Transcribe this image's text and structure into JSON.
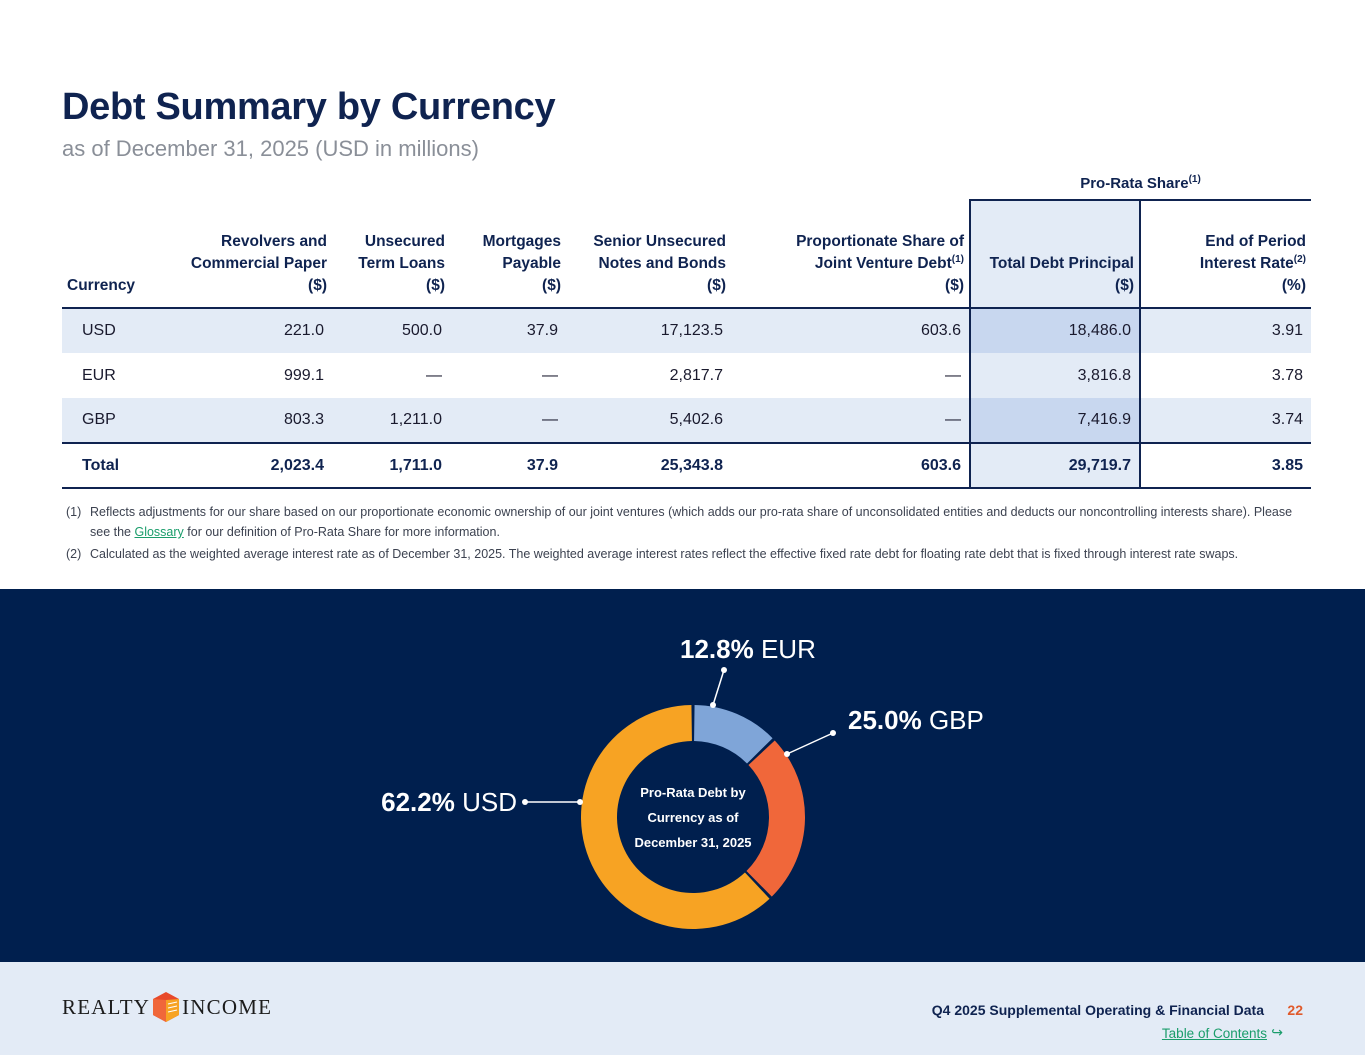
{
  "header": {
    "title": "Debt Summary by Currency",
    "subtitle": "as of December 31, 2025 (USD in millions)"
  },
  "table": {
    "prorata_group": "Pro-Rata Share",
    "prorata_group_note": "(1)",
    "columns": {
      "currency": "Currency",
      "revolvers_l1": "Revolvers and",
      "revolvers_l2": "Commercial Paper",
      "revolvers_unit": "($)",
      "term_l1": "Unsecured",
      "term_l2": "Term Loans",
      "term_unit": "($)",
      "mortgages_l1": "Mortgages",
      "mortgages_l2": "Payable",
      "mortgages_unit": "($)",
      "notes_l1": "Senior Unsecured",
      "notes_l2": "Notes and Bonds",
      "notes_unit": "($)",
      "jv_l1": "Proportionate Share of",
      "jv_l2": "Joint Venture Debt",
      "jv_note": "(1)",
      "jv_unit": "($)",
      "total_l1": "Total Debt Principal",
      "total_unit": "($)",
      "rate_l1": "End of Period",
      "rate_l2": "Interest Rate",
      "rate_note": "(2)",
      "rate_unit": "(%)"
    },
    "rows": [
      {
        "currency": "USD",
        "revolvers": "221.0",
        "term": "500.0",
        "mortgages": "37.9",
        "notes": "17,123.5",
        "jv": "603.6",
        "total": "18,486.0",
        "rate": "3.91"
      },
      {
        "currency": "EUR",
        "revolvers": "999.1",
        "term": "—",
        "mortgages": "—",
        "notes": "2,817.7",
        "jv": "—",
        "total": "3,816.8",
        "rate": "3.78"
      },
      {
        "currency": "GBP",
        "revolvers": "803.3",
        "term": "1,211.0",
        "mortgages": "—",
        "notes": "5,402.6",
        "jv": "—",
        "total": "7,416.9",
        "rate": "3.74"
      }
    ],
    "totals": {
      "currency": "Total",
      "revolvers": "2,023.4",
      "term": "1,711.0",
      "mortgages": "37.9",
      "notes": "25,343.8",
      "jv": "603.6",
      "total": "29,719.7",
      "rate": "3.85"
    }
  },
  "footnotes": {
    "n1_num": "(1)",
    "n1_a": "Reflects adjustments for our share based on our proportionate economic ownership of our joint ventures (which adds our pro-rata share of unconsolidated entities and deducts our noncontrolling interests share). Please see the ",
    "n1_link": "Glossary",
    "n1_b": " for our definition of Pro-Rata Share for more information.",
    "n2_num": "(2)",
    "n2": "Calculated as the weighted average interest rate as of December 31, 2025. The weighted average interest rates reflect the effective fixed rate debt for floating rate debt that is fixed through interest rate swaps."
  },
  "chart_data": {
    "type": "pie",
    "variant": "donut",
    "title": "Pro-Rata Debt by Currency as of December 31, 2025",
    "center_lines": [
      "Pro-Rata Debt by",
      "Currency as of",
      "December 31, 2025"
    ],
    "slices": [
      {
        "label": "EUR",
        "value": 12.8,
        "display": "12.8%",
        "color": "#7fa5d8"
      },
      {
        "label": "GBP",
        "value": 25.0,
        "display": "25.0%",
        "color": "#f0673a"
      },
      {
        "label": "USD",
        "value": 62.2,
        "display": "62.2%",
        "color": "#f7a323"
      }
    ],
    "background": "#001f4e"
  },
  "footer": {
    "logo_left": "REALTY",
    "logo_right": "INCOME",
    "doc_title": "Q4 2025 Supplemental Operating & Financial Data",
    "page": "22",
    "toc_link": "Table of Contents",
    "toc_icon": "↪"
  },
  "colors": {
    "navy": "#0f2350",
    "band": "#e3ebf6",
    "highlight": "#c8d7ef",
    "link_green": "#1a9d6b",
    "page_orange": "#e05a2b"
  }
}
